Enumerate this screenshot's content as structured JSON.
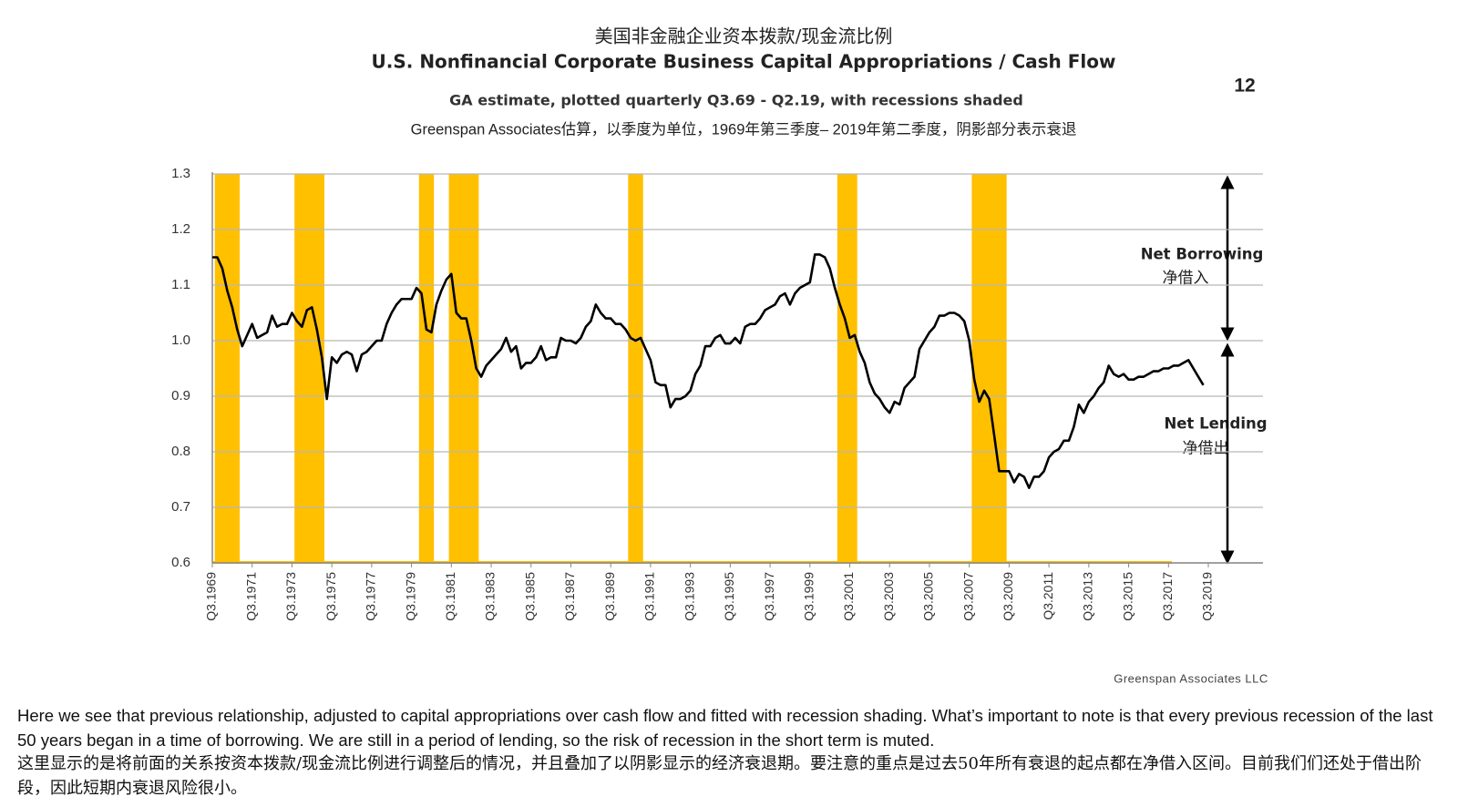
{
  "chart_data": {
    "type": "line",
    "title_cn": "美国非金融企业资本拨款/现金流比例",
    "title": "U.S. Nonfinancial Corporate Business Capital Appropriations / Cash Flow",
    "subtitle": "GA estimate, plotted quarterly Q3.69 - Q2.19, with recessions shaded",
    "subtitle_cn": "Greenspan Associates估算，以季度为单位，1969年第三季度– 2019年第二季度，阴影部分表示衰退",
    "annotations": [
      "Net Borrowing",
      "净借入",
      "Net Lending",
      "净借出"
    ],
    "source": "Greenspan Associates LLC",
    "color": "#000000",
    "recession_color": "#ffc000",
    "recessions": [
      [
        1,
        5
      ],
      [
        17,
        22
      ],
      [
        42,
        44
      ],
      [
        48,
        53
      ],
      [
        84,
        86
      ],
      [
        126,
        129
      ],
      [
        153,
        159
      ]
    ],
    "ylim": [
      0.6,
      1.3
    ],
    "yticks": [
      0.6,
      0.7,
      0.8,
      0.9,
      {
        "value": 1,
        "label": "1.0"
      },
      1.1,
      1.2,
      1.3
    ],
    "grid": true,
    "categories": [
      "Q3.1969",
      null,
      null,
      null,
      null,
      null,
      null,
      null,
      "Q3.1971",
      null,
      null,
      null,
      null,
      null,
      null,
      null,
      "Q3.1973",
      null,
      null,
      null,
      null,
      null,
      null,
      null,
      "Q3.1975",
      null,
      null,
      null,
      null,
      null,
      null,
      null,
      "Q3.1977",
      null,
      null,
      null,
      null,
      null,
      null,
      null,
      "Q3.1979",
      null,
      null,
      null,
      null,
      null,
      null,
      null,
      "Q3.1981",
      null,
      null,
      null,
      null,
      null,
      null,
      null,
      "Q3.1983",
      null,
      null,
      null,
      null,
      null,
      null,
      null,
      "Q3.1985",
      null,
      null,
      null,
      null,
      null,
      null,
      null,
      "Q3.1987",
      null,
      null,
      null,
      null,
      null,
      null,
      null,
      "Q3.1989",
      null,
      null,
      null,
      null,
      null,
      null,
      null,
      "Q3.1991",
      null,
      null,
      null,
      null,
      null,
      null,
      null,
      "Q3.1993",
      null,
      null,
      null,
      null,
      null,
      null,
      null,
      "Q3.1995",
      null,
      null,
      null,
      null,
      null,
      null,
      null,
      "Q3.1997",
      null,
      null,
      null,
      null,
      null,
      null,
      null,
      "Q3.1999",
      null,
      null,
      null,
      null,
      null,
      null,
      null,
      "Q3.2001",
      null,
      null,
      null,
      null,
      null,
      null,
      null,
      "Q3.2003",
      null,
      null,
      null,
      null,
      null,
      null,
      null,
      "Q3.2005",
      null,
      null,
      null,
      null,
      null,
      null,
      null,
      "Q3.2007",
      null,
      null,
      null,
      null,
      null,
      null,
      null,
      "Q3.2009",
      null,
      null,
      null,
      null,
      null,
      null,
      null,
      "Q3.2011",
      null,
      null,
      null,
      null,
      null,
      null,
      null,
      "Q3.2013",
      null,
      null,
      null,
      null,
      null,
      null,
      null,
      "Q3.2015",
      null,
      null,
      null,
      null,
      null,
      null,
      null,
      "Q3.2017",
      null,
      null,
      null,
      null,
      null,
      null,
      null,
      "Q3.2019"
    ],
    "values": [
      1.15,
      1.15,
      1.13,
      1.09,
      1.06,
      1.02,
      0.99,
      1.01,
      1.03,
      1.005,
      1.01,
      1.015,
      1.045,
      1.025,
      1.03,
      1.03,
      1.05,
      1.035,
      1.025,
      1.055,
      1.06,
      1.02,
      0.97,
      0.895,
      0.97,
      0.96,
      0.975,
      0.98,
      0.975,
      0.945,
      0.975,
      0.98,
      0.99,
      1.0,
      1.0,
      1.03,
      1.05,
      1.065,
      1.075,
      1.075,
      1.075,
      1.095,
      1.085,
      1.02,
      1.015,
      1.065,
      1.09,
      1.11,
      1.12,
      1.05,
      1.04,
      1.04,
      1.0,
      0.95,
      0.935,
      0.955,
      0.965,
      0.975,
      0.985,
      1.005,
      0.98,
      0.99,
      0.95,
      0.96,
      0.96,
      0.97,
      0.99,
      0.965,
      0.97,
      0.97,
      1.005,
      1.0,
      1.0,
      0.995,
      1.005,
      1.025,
      1.035,
      1.065,
      1.05,
      1.04,
      1.04,
      1.03,
      1.03,
      1.02,
      1.005,
      1.0,
      1.005,
      0.985,
      0.965,
      0.925,
      0.92,
      0.92,
      0.88,
      0.895,
      0.895,
      0.9,
      0.91,
      0.94,
      0.955,
      0.99,
      0.99,
      1.005,
      1.01,
      0.995,
      0.995,
      1.005,
      0.995,
      1.025,
      1.03,
      1.03,
      1.04,
      1.055,
      1.06,
      1.065,
      1.08,
      1.085,
      1.065,
      1.085,
      1.095,
      1.1,
      1.105,
      1.155,
      1.155,
      1.15,
      1.13,
      1.095,
      1.065,
      1.04,
      1.005,
      1.01,
      0.98,
      0.96,
      0.925,
      0.905,
      0.895,
      0.88,
      0.87,
      0.89,
      0.885,
      0.915,
      0.925,
      0.935,
      0.985,
      1.0,
      1.015,
      1.025,
      1.045,
      1.045,
      1.05,
      1.05,
      1.045,
      1.035,
      1.0,
      0.93,
      0.89,
      0.91,
      0.895,
      0.83,
      0.765,
      0.765,
      0.765,
      0.745,
      0.76,
      0.755,
      0.735,
      0.755,
      0.755,
      0.765,
      0.79,
      0.8,
      0.805,
      0.82,
      0.82,
      0.845,
      0.885,
      0.87,
      0.89,
      0.9,
      0.915,
      0.925,
      0.955,
      0.94,
      0.935,
      0.94,
      0.93,
      0.93,
      0.935,
      0.935,
      0.94,
      0.945,
      0.945,
      0.95,
      0.95,
      0.955,
      0.955,
      0.96,
      0.965,
      0.95,
      0.935,
      0.92,
      null
    ]
  },
  "page_number": "12",
  "body": {
    "en": "Here we see that previous relationship, adjusted to capital appropriations over cash flow and fitted with recession shading. What’s important to note is that every previous recession of the last 50 years began in a time of borrowing. We are still in a period of lending, so the risk of recession in the short term is muted.",
    "cn": "这里显示的是将前面的关系按资本拨款/现金流比例进行调整后的情况，并且叠加了以阴影显示的经济衰退期。要注意的重点是过去50年所有衰退的起点都在净借入区间。目前我们们还处于借出阶段，因此短期内衰退风险很小。"
  }
}
